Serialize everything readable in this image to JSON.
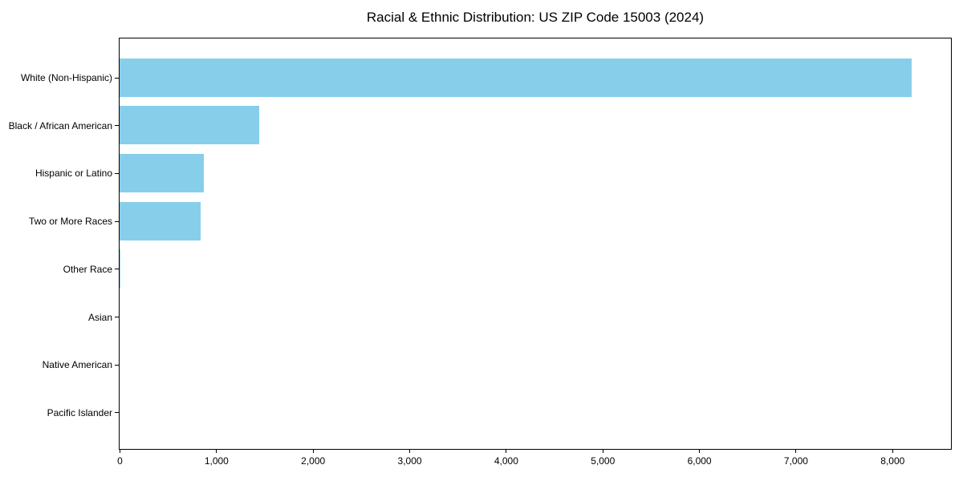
{
  "figure": {
    "title": "Racial & Ethnic Distribution: US ZIP Code 15003 (2024)"
  },
  "chart_data": {
    "type": "bar",
    "orientation": "horizontal",
    "title": "Racial & Ethnic Distribution: US ZIP Code 15003 (2024)",
    "xlabel": "",
    "ylabel": "",
    "categories": [
      "White (Non-Hispanic)",
      "Black / African American",
      "Hispanic or Latino",
      "Two or More Races",
      "Other Race",
      "Asian",
      "Native American",
      "Pacific Islander"
    ],
    "values": [
      8200,
      1445,
      875,
      840,
      10,
      0,
      0,
      0
    ],
    "bar_color": "#87CEEB",
    "xlim": [
      0,
      8600
    ],
    "x_ticks": [
      {
        "value": 0,
        "label": "0"
      },
      {
        "value": 1000,
        "label": "1,000"
      },
      {
        "value": 2000,
        "label": "2,000"
      },
      {
        "value": 3000,
        "label": "3,000"
      },
      {
        "value": 4000,
        "label": "4,000"
      },
      {
        "value": 5000,
        "label": "5,000"
      },
      {
        "value": 6000,
        "label": "6,000"
      },
      {
        "value": 7000,
        "label": "7,000"
      },
      {
        "value": 8000,
        "label": "8,000"
      }
    ],
    "grid": false,
    "legend": null
  }
}
